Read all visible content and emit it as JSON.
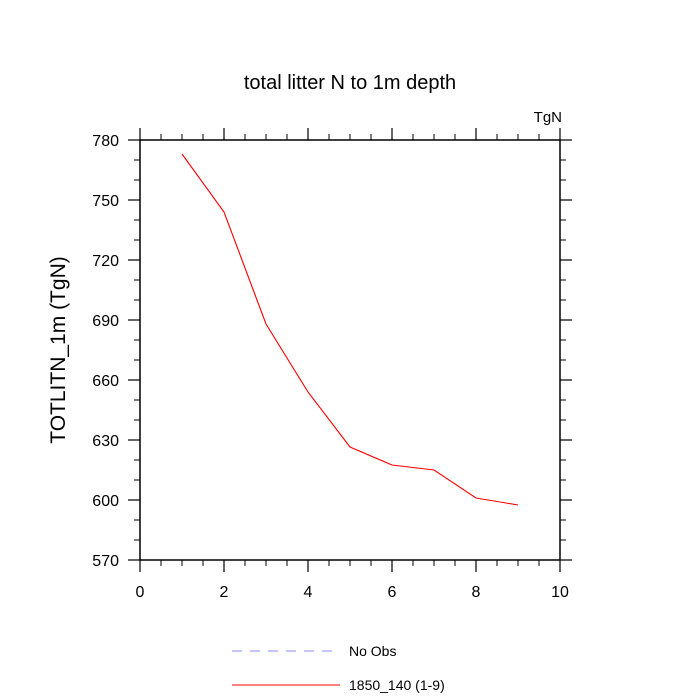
{
  "chart_data": {
    "type": "line",
    "title": "total litter N to 1m depth",
    "units": "TgN",
    "xlabel": "",
    "ylabel": "TOTLITN_1m  (TgN)",
    "xlim": [
      0,
      10
    ],
    "ylim": [
      570,
      780
    ],
    "xticks": [
      0,
      2,
      4,
      6,
      8,
      10
    ],
    "yticks": [
      570,
      600,
      630,
      660,
      690,
      720,
      750,
      780
    ],
    "series": [
      {
        "name": "1850_140 (1-9)",
        "color": "#ff0000",
        "style": "solid",
        "x": [
          1,
          2,
          3,
          4,
          5,
          6,
          7,
          8,
          9
        ],
        "y": [
          773,
          744,
          688,
          654,
          626.5,
          617.5,
          615,
          601,
          597.5
        ]
      }
    ],
    "legend": [
      {
        "label": "No Obs",
        "color": "#8888ff",
        "style": "dashed"
      },
      {
        "label": "1850_140 (1-9)",
        "color": "#ff0000",
        "style": "solid"
      }
    ],
    "legend_position": "bottom-center"
  }
}
